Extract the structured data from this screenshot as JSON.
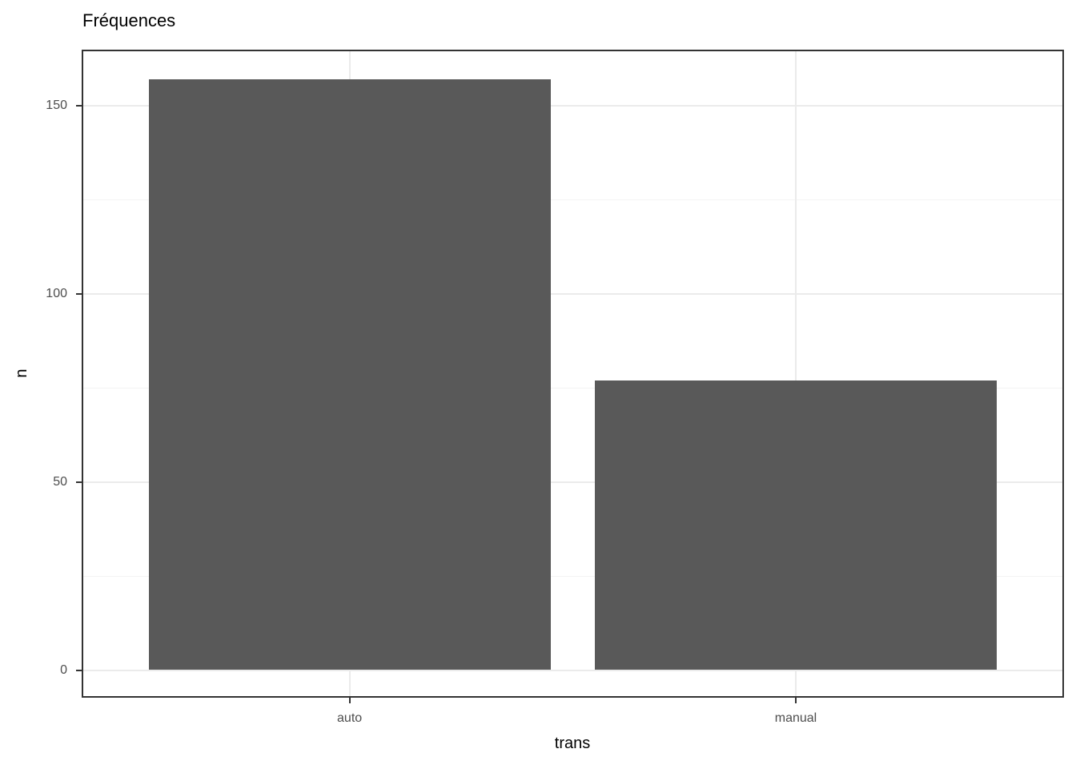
{
  "chart_data": {
    "type": "bar",
    "title": "Fréquences",
    "xlabel": "trans",
    "ylabel": "n",
    "categories": [
      "auto",
      "manual"
    ],
    "values": [
      157,
      77
    ],
    "yticks": [
      0,
      50,
      100,
      150
    ],
    "yticks_minor": [
      25,
      75,
      125
    ],
    "ylim": [
      0,
      165
    ],
    "grid": "on",
    "legend": "none",
    "bar_color": "#595959",
    "panel_border_color": "#333333",
    "grid_major_color": "#EBEBEB",
    "grid_minor_color": "#F3F3F3",
    "tick_mark_color": "#333333",
    "tick_label_color": "#4D4D4D",
    "title_color": "#000000"
  }
}
